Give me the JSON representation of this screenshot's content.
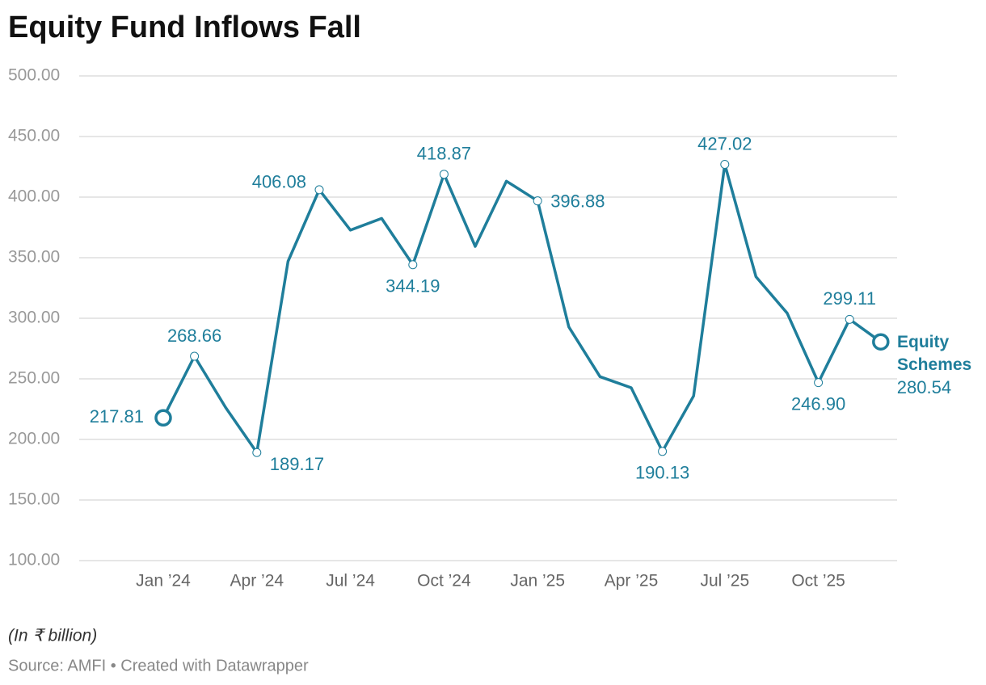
{
  "chart_data": {
    "type": "line",
    "title": "Equity Fund Inflows Fall",
    "note": "(In ₹ billion)",
    "source": "Source: AMFI • Created with Datawrapper",
    "categories": [
      "Jan ’24",
      null,
      null,
      "Apr ’24",
      null,
      null,
      "Jul ’24",
      null,
      null,
      "Oct ’24",
      null,
      null,
      "Jan ’25",
      null,
      null,
      "Apr ’25",
      null,
      null,
      "Jul ’25",
      null,
      null,
      "Oct ’25",
      null,
      null
    ],
    "series": [
      {
        "name": "Equity Schemes",
        "color": "#1f7e9b",
        "values": [
          217.81,
          268.66,
          226.33,
          189.17,
          346.97,
          406.08,
          372.74,
          382.39,
          344.19,
          418.87,
          359.32,
          413.14,
          396.88,
          292.84,
          251.82,
          242.69,
          190.13,
          235.87,
          427.02,
          334.3,
          304.21,
          246.9,
          299.11,
          280.54
        ],
        "value_labels": [
          "217.81",
          "268.66",
          null,
          "189.17",
          null,
          "406.08",
          null,
          null,
          "344.19",
          "418.87",
          null,
          null,
          "396.88",
          null,
          null,
          null,
          "190.13",
          null,
          "427.02",
          null,
          null,
          "246.90",
          "299.11",
          "280.54"
        ]
      }
    ],
    "ylim": [
      100,
      500
    ],
    "yticks": [
      {
        "value": 100,
        "label": "100.00"
      },
      {
        "value": 150,
        "label": "150.00"
      },
      {
        "value": 200,
        "label": "200.00"
      },
      {
        "value": 250,
        "label": "250.00"
      },
      {
        "value": 300,
        "label": "300.00"
      },
      {
        "value": 350,
        "label": "350.00"
      },
      {
        "value": 400,
        "label": "400.00"
      },
      {
        "value": 450,
        "label": "450.00"
      },
      {
        "value": 500,
        "label": "500.00"
      }
    ],
    "grid": true
  }
}
